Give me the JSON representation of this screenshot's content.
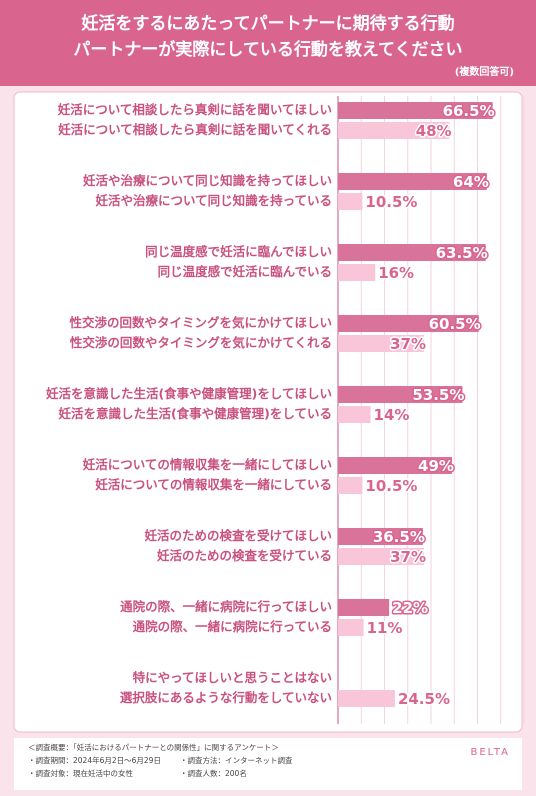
{
  "chart_data": {
    "type": "bar",
    "orientation": "horizontal",
    "title": [
      "妊活をするにあたってパートナーに期待する行動",
      "パートナーが実際にしている行動を教えてください"
    ],
    "subtitle": "(複数回答可)",
    "xlim": [
      0,
      80
    ],
    "grid_lines": [
      10,
      20,
      30,
      40,
      50,
      60,
      70,
      80
    ],
    "grid": true,
    "series": [
      {
        "color": "#d9739a",
        "labels": [
          "妊活について相談したら真剣に話を聞いてほしい",
          "妊活や治療について同じ知識を持ってほしい",
          "同じ温度感で妊活に臨んでほしい",
          "性交渉の回数やタイミングを気にかけてほしい",
          "妊活を意識した生活(食事や健康管理)をしてほしい",
          "妊活についての情報収集を一緒にしてほしい",
          "妊活のための検査を受けてほしい",
          "通院の際、一緒に病院に行ってほしい",
          "特にやってほしいと思うことはない"
        ],
        "values": [
          66.5,
          64,
          63.5,
          60.5,
          53.5,
          49,
          36.5,
          22,
          null
        ],
        "value_labels": [
          "66.5%",
          "64%",
          "63.5%",
          "60.5%",
          "53.5%",
          "49%",
          "36.5%",
          "22%",
          null
        ]
      },
      {
        "color": "#f9c5d8",
        "labels": [
          "妊活について相談したら真剣に話を聞いてくれる",
          "妊活や治療について同じ知識を持っている",
          "同じ温度感で妊活に臨んでいる",
          "性交渉の回数やタイミングを気にかけてくれる",
          "妊活を意識した生活(食事や健康管理)をしている",
          "妊活についての情報収集を一緒にしている",
          "妊活のための検査を受けている",
          "通院の際、一緒に病院に行っている",
          "選択肢にあるような行動をしていない"
        ],
        "values": [
          48,
          10.5,
          16,
          37,
          14,
          10.5,
          37,
          11,
          24.5
        ],
        "value_labels": [
          "48%",
          "10.5%",
          "16%",
          "37%",
          "14%",
          "10.5%",
          "37%",
          "11%",
          "24.5%"
        ]
      }
    ]
  },
  "footer": {
    "heading": "＜調査概要：「妊活におけるパートナーとの関係性」に関するアンケート＞",
    "items": [
      "・調査期間：2024年6月2日〜6月29日",
      "・調査方法：インターネット調査",
      "・調査対象：現在妊活中の女性",
      "・調査人数：200名"
    ],
    "brand": "BELTA"
  }
}
